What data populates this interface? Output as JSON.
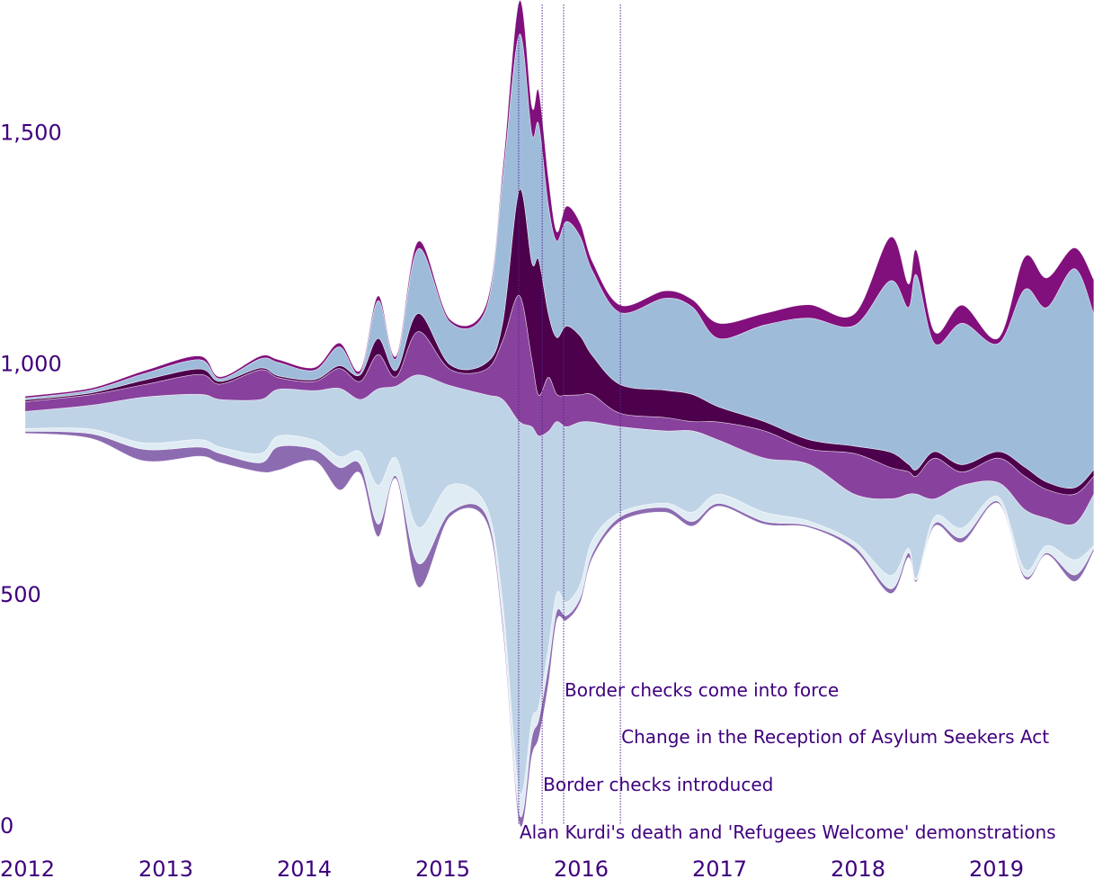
{
  "chart_data": {
    "type": "area",
    "subtype": "streamgraph",
    "title": "",
    "xlabel": "",
    "ylabel": "",
    "xlim": [
      2012.11,
      2019.83
    ],
    "ylim": [
      0,
      1780
    ],
    "grid": false,
    "legend": "none",
    "x_ticks": [
      {
        "value": 2012,
        "label": "2012"
      },
      {
        "value": 2013,
        "label": "2013"
      },
      {
        "value": 2014,
        "label": "2014"
      },
      {
        "value": 2015,
        "label": "2015"
      },
      {
        "value": 2016,
        "label": "2016"
      },
      {
        "value": 2017,
        "label": "2017"
      },
      {
        "value": 2018,
        "label": "2018"
      },
      {
        "value": 2019,
        "label": "2019"
      }
    ],
    "y_ticks": [
      {
        "value": 0,
        "label": "0"
      },
      {
        "value": 500,
        "label": "500"
      },
      {
        "value": 1000,
        "label": "1,000"
      },
      {
        "value": 1500,
        "label": "1,500"
      }
    ],
    "x": [
      2012.11,
      2012.58,
      2012.97,
      2013.37,
      2013.52,
      2013.81,
      2013.94,
      2014.2,
      2014.38,
      2014.53,
      2014.66,
      2014.79,
      2014.95,
      2015.18,
      2015.44,
      2015.56,
      2015.68,
      2015.77,
      2015.82,
      2015.89,
      2015.95,
      2016.02,
      2016.12,
      2016.21,
      2016.41,
      2016.73,
      2016.93,
      2017.12,
      2017.45,
      2017.77,
      2018.1,
      2018.36,
      2018.49,
      2018.55,
      2018.68,
      2018.88,
      2019.14,
      2019.33,
      2019.49,
      2019.69,
      2019.83
    ],
    "baseline": [
      848,
      837,
      788,
      798,
      784,
      764,
      768,
      788,
      725,
      761,
      624,
      749,
      515,
      667,
      657,
      423,
      4,
      150,
      189,
      306,
      443,
      443,
      482,
      579,
      657,
      677,
      647,
      690,
      651,
      644,
      595,
      501,
      579,
      527,
      647,
      612,
      696,
      534,
      585,
      527,
      593
    ],
    "series": [
      {
        "color": "#8c6bb1",
        "values": [
          4,
          10,
          25,
          20,
          20,
          20,
          51,
          25,
          49,
          20,
          27,
          6,
          51,
          10,
          14,
          20,
          20,
          39,
          39,
          39,
          20,
          10,
          10,
          10,
          10,
          10,
          10,
          6,
          6,
          4,
          8,
          10,
          10,
          4,
          6,
          10,
          4,
          6,
          4,
          14,
          6
        ]
      },
      {
        "color": "#e0ecf4",
        "values": [
          6,
          10,
          14,
          16,
          14,
          20,
          23,
          20,
          23,
          27,
          84,
          39,
          78,
          59,
          20,
          39,
          49,
          39,
          29,
          39,
          39,
          29,
          29,
          29,
          10,
          10,
          20,
          20,
          20,
          10,
          10,
          29,
          10,
          4,
          14,
          21,
          10,
          14,
          16,
          33,
          6
        ]
      },
      {
        "color": "#bfd3e6",
        "values": [
          37,
          51,
          99,
          98,
          103,
          117,
          101,
          107,
          148,
          113,
          209,
          156,
          330,
          215,
          240,
          439,
          800,
          634,
          585,
          468,
          371,
          380,
          351,
          254,
          185,
          156,
          176,
          117,
          117,
          123,
          103,
          166,
          117,
          181,
          39,
          92,
          31,
          129,
          59,
          78,
          111
        ]
      },
      {
        "color": "#88419d",
        "values": [
          21,
          23,
          27,
          43,
          33,
          64,
          25,
          20,
          43,
          39,
          74,
          20,
          94,
          35,
          55,
          127,
          273,
          146,
          88,
          117,
          59,
          68,
          59,
          59,
          29,
          29,
          20,
          39,
          59,
          33,
          88,
          68,
          49,
          39,
          88,
          29,
          53,
          72,
          62,
          64,
          39
        ]
      },
      {
        "color": "#4d004b",
        "values": [
          4,
          4,
          10,
          12,
          6,
          4,
          4,
          4,
          6,
          14,
          35,
          14,
          39,
          10,
          14,
          39,
          228,
          209,
          293,
          137,
          123,
          150,
          127,
          84,
          62,
          59,
          59,
          33,
          20,
          20,
          16,
          33,
          16,
          14,
          14,
          16,
          14,
          20,
          16,
          14,
          14
        ]
      },
      {
        "color": "#9ebcda",
        "values": [
          4,
          6,
          14,
          20,
          6,
          20,
          29,
          20,
          41,
          4,
          82,
          25,
          140,
          92,
          117,
          312,
          337,
          279,
          293,
          234,
          209,
          226,
          215,
          183,
          156,
          199,
          189,
          148,
          209,
          263,
          261,
          371,
          339,
          421,
          234,
          306,
          234,
          384,
          378,
          474,
          337
        ]
      },
      {
        "color": "#810f7c",
        "values": [
          4,
          4,
          6,
          8,
          4,
          6,
          6,
          6,
          8,
          6,
          10,
          6,
          16,
          6,
          10,
          20,
          72,
          59,
          72,
          59,
          20,
          33,
          29,
          20,
          16,
          16,
          16,
          33,
          25,
          29,
          25,
          94,
          51,
          53,
          25,
          39,
          12,
          70,
          64,
          45,
          74
        ]
      }
    ],
    "events": [
      {
        "date": 2015.675,
        "label": "Alan Kurdi's death and 'Refugees Welcome' demonstrations"
      },
      {
        "date": 2015.845,
        "label": "Border checks introduced"
      },
      {
        "date": 2016.0,
        "label": "Border checks come into force"
      },
      {
        "date": 2016.41,
        "label": "Change in the Reception of Asylum Seekers Act"
      }
    ],
    "text_color": "#3f007d",
    "event_line_color": "#54278f"
  }
}
